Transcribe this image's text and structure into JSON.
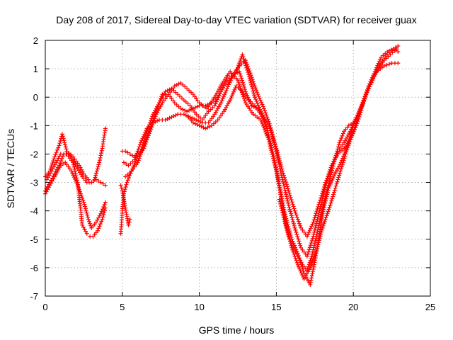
{
  "chart_data": {
    "type": "scatter",
    "title": "Day 208 of 2017, Sidereal Day-to-day VTEC variation (SDTVAR) for receiver guax",
    "xlabel": "GPS time / hours",
    "ylabel": "SDTVAR / TECUs",
    "xlim": [
      0,
      25
    ],
    "ylim": [
      -7,
      2
    ],
    "xticks": [
      0,
      5,
      10,
      15,
      20,
      25
    ],
    "yticks": [
      -7,
      -6,
      -5,
      -4,
      -3,
      -2,
      -1,
      0,
      1,
      2
    ],
    "grid": true,
    "marker": "+",
    "color": "#ff0000",
    "series": [
      {
        "x": [
          0.0,
          0.3,
          0.6,
          0.9,
          1.1,
          1.4,
          1.8,
          2.2,
          2.5,
          2.8,
          3.0,
          3.2,
          3.5,
          3.7,
          3.9
        ],
        "y": [
          -2.8,
          -2.6,
          -2.1,
          -1.7,
          -1.3,
          -1.9,
          -2.1,
          -2.4,
          -2.7,
          -2.9,
          -3.0,
          -2.9,
          -2.3,
          -1.8,
          -1.1
        ]
      },
      {
        "x": [
          0.0,
          0.3,
          0.6,
          0.9,
          1.2,
          1.5,
          1.8,
          2.1,
          2.4,
          2.7,
          3.0,
          3.3,
          3.6,
          3.9
        ],
        "y": [
          -3.3,
          -3.0,
          -2.7,
          -2.4,
          -2.0,
          -2.0,
          -2.2,
          -2.5,
          -2.8,
          -3.0,
          -3.0,
          -2.9,
          -3.0,
          -3.1
        ]
      },
      {
        "x": [
          0.0,
          0.3,
          0.6,
          1.0,
          1.3,
          1.7,
          2.1,
          2.5,
          2.8,
          3.0,
          3.3,
          3.6,
          3.9
        ],
        "y": [
          -3.4,
          -3.1,
          -2.8,
          -2.4,
          -2.3,
          -2.6,
          -3.1,
          -3.7,
          -4.3,
          -4.6,
          -4.4,
          -4.1,
          -3.7
        ]
      },
      {
        "x": [
          0.1,
          0.4,
          0.7,
          1.0,
          1.4,
          1.8,
          2.1,
          2.4,
          2.7,
          2.9,
          3.1,
          3.4,
          3.7,
          3.9
        ],
        "y": [
          -2.9,
          -2.6,
          -2.3,
          -2.0,
          -2.0,
          -2.3,
          -3.0,
          -4.5,
          -4.8,
          -4.9,
          -4.9,
          -4.7,
          -4.3,
          -3.9
        ]
      },
      {
        "x": [
          4.9,
          5.0,
          5.1,
          5.3,
          5.6,
          6.0,
          6.4,
          6.8,
          7.2,
          7.6,
          8.0,
          8.4,
          8.8,
          9.2,
          9.6,
          10.0,
          10.5,
          11.0,
          11.5,
          12.0,
          12.5,
          13.0,
          13.5,
          14.0,
          14.5,
          15.0,
          15.3,
          15.6,
          16.0,
          16.4,
          16.8,
          17.2,
          17.6,
          18.0,
          18.5,
          19.0,
          19.5,
          20.0,
          20.5,
          21.0,
          21.5,
          22.0,
          22.5,
          22.9
        ],
        "y": [
          -4.8,
          -4.0,
          -3.4,
          -3.0,
          -2.6,
          -2.1,
          -1.8,
          -1.2,
          -0.6,
          -0.2,
          0.1,
          0.4,
          0.5,
          0.3,
          0.1,
          -0.2,
          -0.4,
          0.0,
          0.5,
          0.9,
          0.6,
          -0.2,
          -0.6,
          -0.8,
          -1.5,
          -2.6,
          -3.5,
          -4.4,
          -5.3,
          -5.9,
          -6.4,
          -6.0,
          -5.4,
          -4.6,
          -3.8,
          -2.9,
          -2.0,
          -1.2,
          -0.4,
          0.4,
          0.9,
          1.1,
          1.2,
          1.2
        ]
      },
      {
        "x": [
          5.0,
          5.2,
          5.5,
          5.8,
          6.2,
          6.6,
          7.0,
          7.4,
          7.8,
          8.2,
          8.6,
          9.0,
          9.4,
          9.8,
          10.2,
          10.6,
          11.0,
          11.4,
          11.8,
          12.2,
          12.6,
          13.0,
          13.4,
          13.8,
          14.2,
          14.6,
          15.0,
          15.4,
          15.8,
          16.2,
          16.6,
          17.0,
          17.4,
          17.8,
          18.2,
          18.6,
          19.0,
          19.4,
          19.8,
          20.2,
          20.6,
          21.0,
          21.4,
          21.8,
          22.2,
          22.6,
          22.9
        ],
        "y": [
          -1.9,
          -1.9,
          -2.0,
          -2.1,
          -1.9,
          -1.2,
          -0.6,
          -0.2,
          0.2,
          0.3,
          0.1,
          -0.1,
          -0.3,
          -0.6,
          -0.8,
          -0.5,
          -0.3,
          0.2,
          0.6,
          0.8,
          0.9,
          0.2,
          -0.3,
          -0.4,
          -0.7,
          -1.1,
          -1.8,
          -2.6,
          -3.3,
          -4.0,
          -4.6,
          -4.9,
          -4.4,
          -3.7,
          -3.0,
          -2.4,
          -2.0,
          -1.8,
          -1.5,
          -1.0,
          -0.3,
          0.4,
          0.9,
          1.4,
          1.6,
          1.7,
          1.6
        ]
      },
      {
        "x": [
          5.1,
          5.4,
          5.8,
          6.2,
          6.6,
          7.0,
          7.4,
          7.8,
          8.2,
          8.6,
          9.0,
          9.4,
          9.8,
          10.2,
          10.6,
          11.0,
          11.4,
          11.8,
          12.2,
          12.6,
          13.0,
          13.4,
          13.8,
          14.2,
          14.6,
          15.0,
          15.4,
          15.8,
          16.2,
          16.6,
          17.0,
          17.4,
          17.8,
          18.2,
          18.6,
          19.0,
          19.4,
          19.8,
          20.2,
          20.6,
          21.0,
          21.4,
          21.8,
          22.2,
          22.6,
          22.9
        ],
        "y": [
          -2.3,
          -2.4,
          -2.2,
          -1.6,
          -1.1,
          -0.9,
          -0.8,
          -0.8,
          -0.7,
          -0.6,
          -0.6,
          -0.7,
          -0.8,
          -0.9,
          -0.9,
          -0.6,
          -0.2,
          0.3,
          0.8,
          1.1,
          1.3,
          0.7,
          0.1,
          -0.4,
          -1.0,
          -1.9,
          -2.9,
          -3.8,
          -4.6,
          -5.3,
          -5.6,
          -4.9,
          -4.0,
          -3.1,
          -2.4,
          -1.9,
          -1.6,
          -1.2,
          -0.7,
          -0.2,
          0.3,
          0.8,
          1.2,
          1.5,
          1.7,
          1.8
        ]
      },
      {
        "x": [
          5.2,
          5.6,
          6.0,
          6.4,
          6.8,
          7.2,
          7.6,
          8.0,
          8.4,
          8.8,
          9.2,
          9.6,
          10.0,
          10.4,
          10.8,
          11.2,
          11.6,
          12.0,
          12.4,
          12.8,
          13.2,
          13.6,
          14.0,
          14.4,
          14.8,
          15.2,
          15.6,
          16.0,
          16.4,
          16.8,
          17.2,
          17.6,
          18.0,
          18.4,
          18.8,
          19.2,
          19.6,
          20.0,
          20.4,
          20.8,
          21.2,
          21.6,
          22.0,
          22.4,
          22.8
        ],
        "y": [
          -2.8,
          -2.6,
          -2.3,
          -1.7,
          -1.1,
          -0.5,
          0.1,
          0.1,
          -0.2,
          -0.4,
          -0.5,
          -0.4,
          -0.3,
          -0.3,
          -0.2,
          0.0,
          0.4,
          0.6,
          0.9,
          1.5,
          0.8,
          0.0,
          -0.5,
          -1.1,
          -2.0,
          -3.1,
          -4.2,
          -5.0,
          -5.5,
          -6.2,
          -6.6,
          -5.5,
          -4.1,
          -3.2,
          -2.7,
          -2.3,
          -1.7,
          -1.0,
          -0.5,
          0.1,
          0.6,
          1.0,
          1.3,
          1.5,
          1.7
        ]
      },
      {
        "x": [
          9.3,
          9.6,
          10.0,
          10.4,
          10.8,
          11.2,
          11.6,
          12.0,
          12.4,
          12.8,
          13.2,
          13.6,
          14.0,
          14.4
        ],
        "y": [
          -0.7,
          -0.9,
          -1.0,
          -1.1,
          -1.0,
          -0.8,
          -0.5,
          -0.1,
          0.4,
          0.2,
          -0.1,
          -0.3,
          -0.6,
          -1.1
        ]
      },
      {
        "x": [
          15.2,
          15.5,
          15.8,
          16.1,
          16.4,
          16.7,
          17.0,
          17.3,
          17.6,
          17.9,
          18.2,
          18.5,
          18.8,
          19.1,
          19.4,
          19.7,
          20.0
        ],
        "y": [
          -3.6,
          -4.3,
          -4.9,
          -5.3,
          -5.6,
          -5.9,
          -6.1,
          -5.6,
          -4.9,
          -4.2,
          -3.5,
          -2.8,
          -2.2,
          -1.6,
          -1.2,
          -1.0,
          -0.9
        ]
      },
      {
        "x": [
          4.9,
          5.0,
          5.1,
          5.2,
          5.3,
          5.4,
          5.5
        ],
        "y": [
          -3.1,
          -3.3,
          -3.6,
          -3.9,
          -4.2,
          -4.5,
          -4.3
        ]
      }
    ]
  }
}
